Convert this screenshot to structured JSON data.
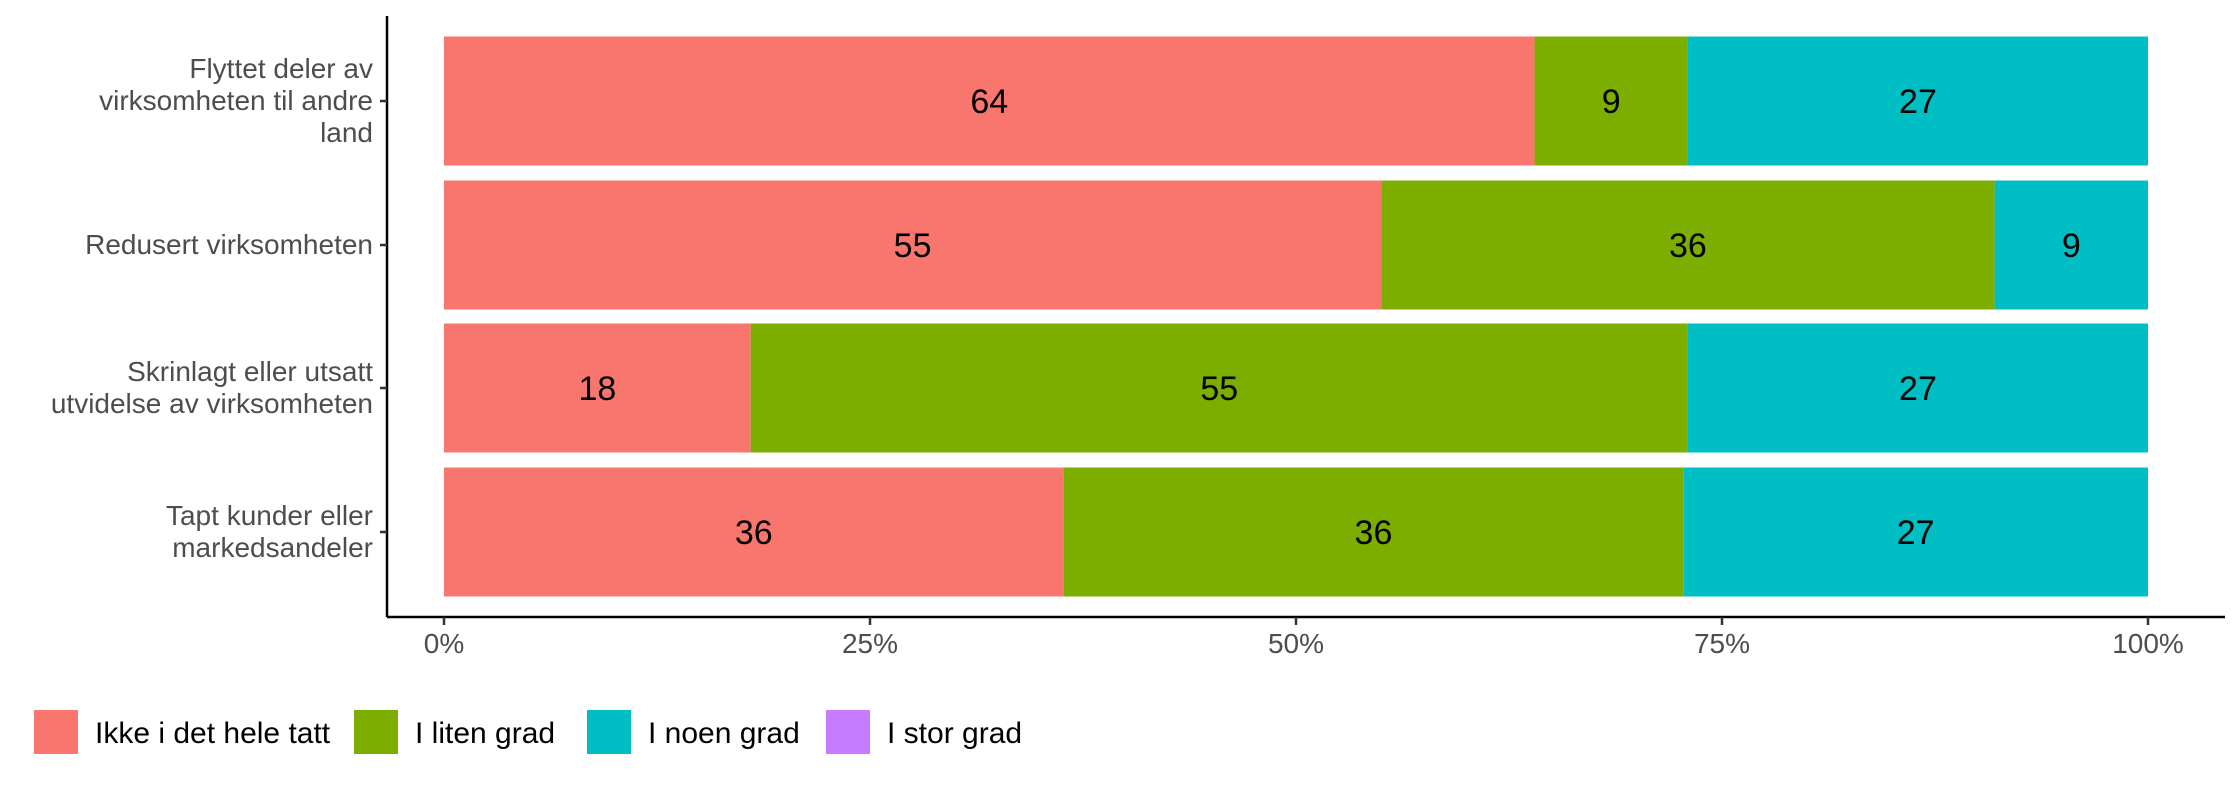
{
  "chart_data": {
    "type": "bar",
    "orientation": "horizontal",
    "stacked": true,
    "percent": true,
    "categories": [
      [
        "Flyttet deler av",
        "virksomheten til andre",
        "land"
      ],
      [
        "Redusert virksomheten"
      ],
      [
        "Skrinlagt eller utsatt",
        "utvidelse av virksomheten"
      ],
      [
        "Tapt kunder eller",
        "markedsandeler"
      ]
    ],
    "series": [
      {
        "name": "Ikke i det hele tatt",
        "color": "#F8766D",
        "values": [
          64,
          55,
          18,
          36
        ],
        "labels": [
          "64",
          "55",
          "18",
          "36"
        ]
      },
      {
        "name": "I liten grad",
        "color": "#7CAE00",
        "values": [
          9,
          36,
          55,
          36
        ],
        "labels": [
          "9",
          "36",
          "55",
          "36"
        ]
      },
      {
        "name": "I noen grad",
        "color": "#00BFC4",
        "values": [
          27,
          9,
          27,
          27
        ],
        "labels": [
          "27",
          "9",
          "27",
          "27"
        ]
      },
      {
        "name": "I stor grad",
        "color": "#C77CFF",
        "values": [
          0,
          0,
          0,
          0
        ],
        "labels": [
          "",
          "",
          "",
          ""
        ]
      }
    ],
    "xlim": [
      0,
      100
    ],
    "xticks": [
      0,
      25,
      50,
      75,
      100
    ],
    "xtick_labels": [
      "0%",
      "25%",
      "50%",
      "75%",
      "100%"
    ],
    "xlabel": "",
    "ylabel": "",
    "grid": false,
    "legend_position": "bottom"
  }
}
